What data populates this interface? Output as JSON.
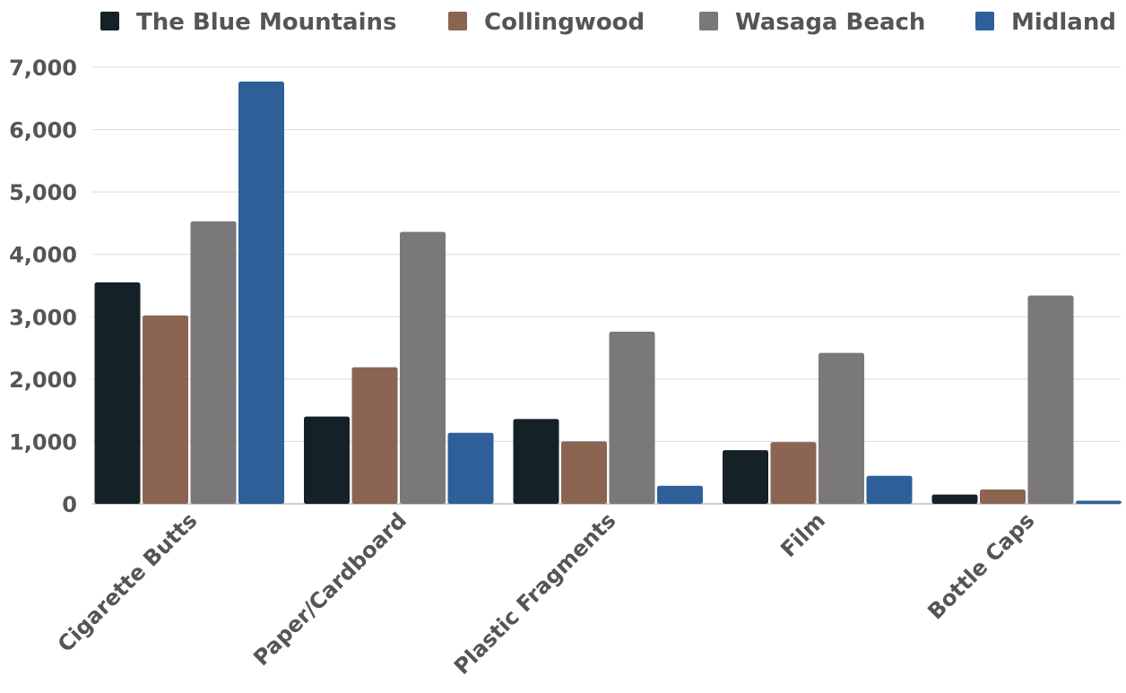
{
  "chart_data": {
    "type": "bar",
    "categories": [
      "Cigarette Butts",
      "Paper/Cardboard",
      "Plastic Fragments",
      "Film",
      "Bottle Caps"
    ],
    "series": [
      {
        "name": "The Blue Mountains",
        "color": "#142227",
        "values": [
          3550,
          1400,
          1360,
          860,
          150
        ]
      },
      {
        "name": "Collingwood",
        "color": "#8b6552",
        "values": [
          3020,
          2190,
          1000,
          990,
          230
        ]
      },
      {
        "name": "Wasaga Beach",
        "color": "#7a7879",
        "values": [
          4530,
          4360,
          2760,
          2420,
          3340
        ]
      },
      {
        "name": "Midland",
        "color": "#2e5f99",
        "values": [
          6770,
          1140,
          290,
          450,
          50
        ]
      }
    ],
    "yticks": [
      "0",
      "1,000",
      "2,000",
      "3,000",
      "4,000",
      "5,000",
      "6,000",
      "7,000"
    ],
    "ylim": [
      0,
      7000
    ],
    "grid": true,
    "legend_position": "top",
    "title": "",
    "xlabel": "",
    "ylabel": ""
  }
}
